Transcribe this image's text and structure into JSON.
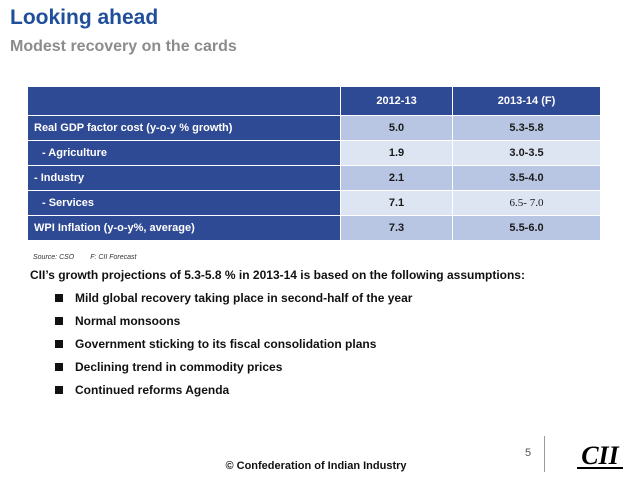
{
  "header": {
    "title": "Looking ahead",
    "subtitle": "Modest recovery on the cards"
  },
  "table": {
    "columns": [
      "2012-13",
      "2013-14 (F)"
    ],
    "rows": [
      {
        "label": "Real GDP factor cost (y-o-y % growth)",
        "v1": "5.0",
        "v2": "5.3-5.8"
      },
      {
        "label": "- Agriculture",
        "v1": "1.9",
        "v2": "3.0-3.5"
      },
      {
        "label": "- Industry",
        "v1": "2.1",
        "v2": "3.5-4.0"
      },
      {
        "label": "- Services",
        "v1": "7.1",
        "v2": "6.5- 7.0"
      },
      {
        "label": "WPI Inflation (y-o-y%, average)",
        "v1": "7.3",
        "v2": "5.5-6.0"
      }
    ]
  },
  "source": {
    "source": "Source: CSO",
    "forecast": "F: CII Forecast"
  },
  "assumptions": {
    "intro": "CII’s  growth projections of 5.3-5.8 % in 2013-14 is based on the following assumptions:",
    "items": [
      "Mild global recovery taking place in second-half of the year",
      "Normal monsoons",
      "Government sticking to its fiscal consolidation plans",
      "Declining trend in commodity prices",
      "Continued reforms Agenda"
    ]
  },
  "footer": {
    "page_number": "5",
    "copyright": "© Confederation of Indian Industry",
    "logo_text": "CII"
  }
}
